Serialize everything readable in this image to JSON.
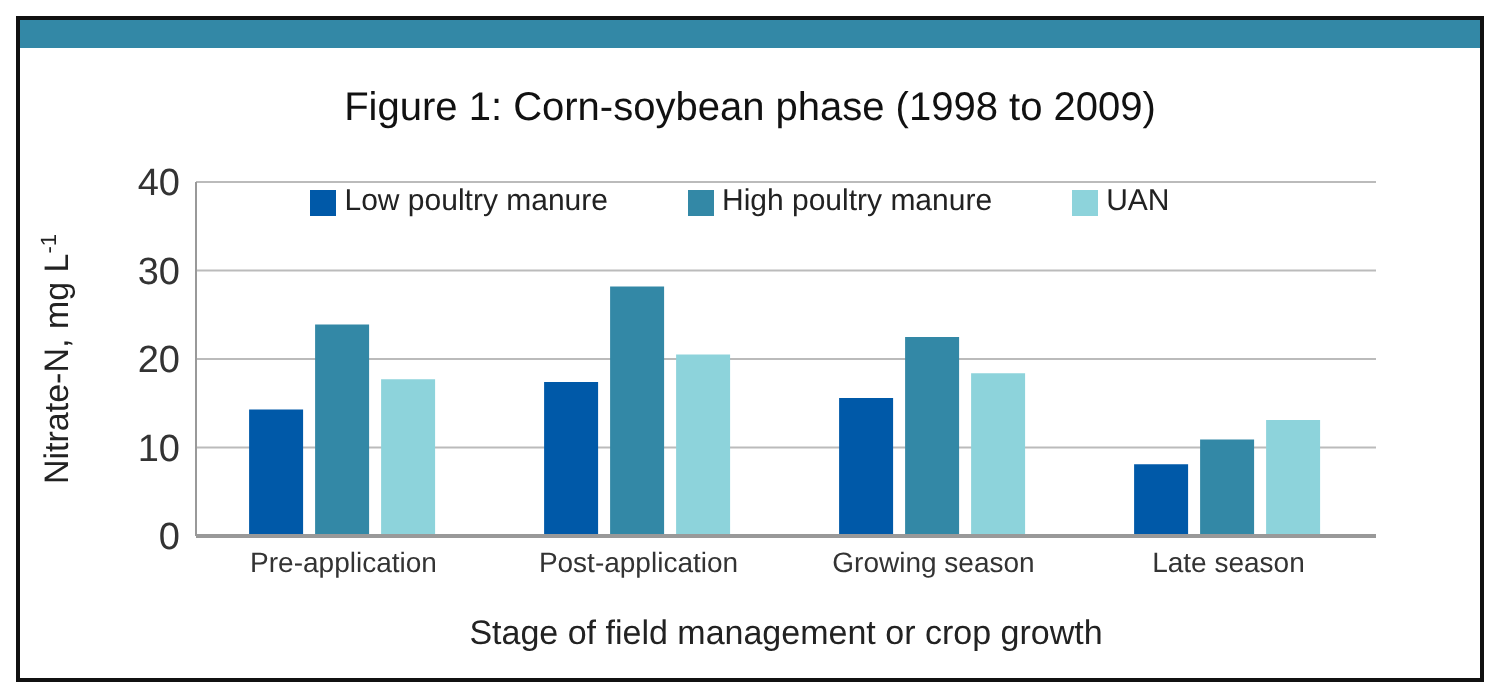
{
  "chart_data": {
    "type": "bar",
    "title": "Figure 1: Corn-soybean phase (1998 to 2009)",
    "xlabel": "Stage of field management or crop growth",
    "ylabel": "Nitrate-N, mg L$^{-1}$",
    "categories": [
      "Pre-application",
      "Post-application",
      "Growing season",
      "Late season"
    ],
    "series": [
      {
        "name": "Low poultry manure",
        "color": "#0059a8",
        "values": [
          14.3,
          17.4,
          15.6,
          8.1
        ]
      },
      {
        "name": "High poultry manure",
        "color": "#3388a6",
        "values": [
          23.9,
          28.2,
          22.5,
          10.9
        ]
      },
      {
        "name": "UAN",
        "color": "#8dd3db",
        "values": [
          17.7,
          20.5,
          18.4,
          13.1
        ]
      }
    ],
    "ylim": [
      0,
      40
    ],
    "yticks": [
      0,
      10,
      20,
      30,
      40
    ],
    "grid": "y",
    "legend": "top"
  }
}
